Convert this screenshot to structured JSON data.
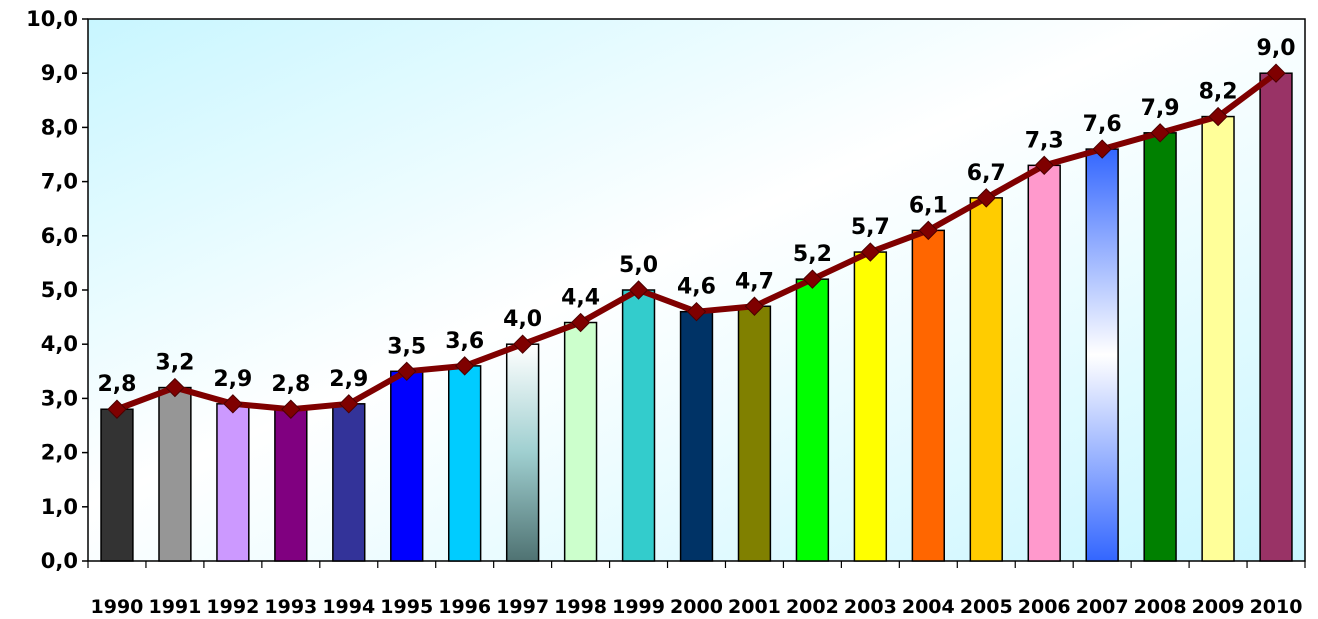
{
  "chart_data": {
    "type": "bar",
    "title": "",
    "xlabel": "",
    "ylabel": "",
    "ylim": [
      0,
      10
    ],
    "yticks": [
      "0,0",
      "1,0",
      "2,0",
      "3,0",
      "4,0",
      "5,0",
      "6,0",
      "7,0",
      "8,0",
      "9,0",
      "10,0"
    ],
    "categories": [
      "1990",
      "1991",
      "1992",
      "1993",
      "1994",
      "1995",
      "1996",
      "1997",
      "1998",
      "1999",
      "2000",
      "2001",
      "2002",
      "2003",
      "2004",
      "2005",
      "2006",
      "2007",
      "2008",
      "2009",
      "2010"
    ],
    "values": [
      2.8,
      3.2,
      2.9,
      2.8,
      2.9,
      3.5,
      3.6,
      4.0,
      4.4,
      5.0,
      4.6,
      4.7,
      5.2,
      5.7,
      6.1,
      6.7,
      7.3,
      7.6,
      7.9,
      8.2,
      9.0
    ],
    "value_labels": [
      "2,8",
      "3,2",
      "2,9",
      "2,8",
      "2,9",
      "3,5",
      "3,6",
      "4,0",
      "4,4",
      "5,0",
      "4,6",
      "4,7",
      "5,2",
      "5,7",
      "6,1",
      "6,7",
      "7,3",
      "7,6",
      "7,9",
      "8,2",
      "9,0"
    ],
    "bar_colors": [
      "#333333",
      "#969696",
      "#cc99ff",
      "#800080",
      "#333399",
      "#0000ff",
      "#00ccff",
      "gradient-teal",
      "#ccffcc",
      "#33cccc",
      "#003366",
      "#808000",
      "#00ff00",
      "#ffff00",
      "#ff6600",
      "#ffcc00",
      "#ff99cc",
      "gradient-blue",
      "#008000",
      "#ffff99",
      "#993366"
    ],
    "overlay_line": {
      "color": "#7f0000",
      "marker": "diamond"
    },
    "background": "gradient-light-cyan",
    "grid": false,
    "legend": "none"
  }
}
